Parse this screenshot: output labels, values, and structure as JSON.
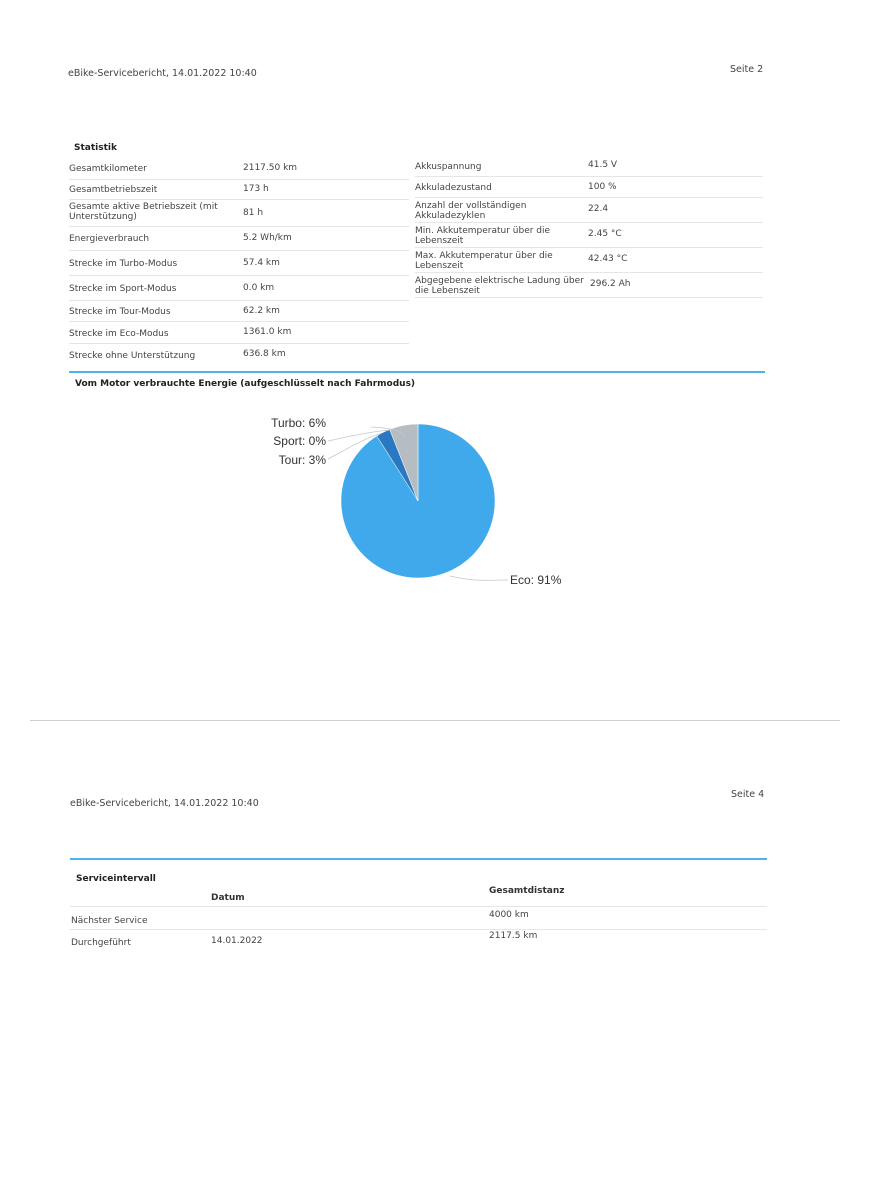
{
  "page1": {
    "header_left": "eBike-Servicebericht, 14.01.2022 10:40",
    "header_right": "Seite 2",
    "statistik_title": "Statistik",
    "left_rows": [
      {
        "label": "Gesamtkilometer",
        "value": "2117.50 km"
      },
      {
        "label": "Gesamtbetriebszeit",
        "value": "173 h"
      },
      {
        "label": "Gesamte aktive Betriebszeit (mit Unterstützung)",
        "value": "81 h"
      },
      {
        "label": "Energieverbrauch",
        "value": "5.2 Wh/km"
      },
      {
        "label": "Strecke im Turbo-Modus",
        "value": "57.4 km"
      },
      {
        "label": "Strecke im Sport-Modus",
        "value": "0.0 km"
      },
      {
        "label": "Strecke im Tour-Modus",
        "value": "62.2 km"
      },
      {
        "label": "Strecke im Eco-Modus",
        "value": "1361.0 km"
      },
      {
        "label": "Strecke ohne Unterstützung",
        "value": "636.8 km"
      }
    ],
    "right_rows": [
      {
        "label": "Akkuspannung",
        "value": "41.5 V"
      },
      {
        "label": "Akkuladezustand",
        "value": "100 %"
      },
      {
        "label": "Anzahl der vollständigen Akkuladezyklen",
        "value": "22.4"
      },
      {
        "label": "Min. Akkutemperatur über die Lebenszeit",
        "value": "2.45 °C"
      },
      {
        "label": "Max. Akkutemperatur über die Lebenszeit",
        "value": "42.43 °C"
      },
      {
        "label": "Abgegebene elektrische Ladung über die Lebenszeit",
        "value": "296.2 Ah"
      }
    ],
    "chart_title": "Vom Motor verbrauchte Energie (aufgeschlüsselt nach Fahrmodus)"
  },
  "chart_data": {
    "type": "pie",
    "title": "Vom Motor verbrauchte Energie (aufgeschlüsselt nach Fahrmodus)",
    "slices": [
      {
        "name": "Eco",
        "value": 91,
        "label": "Eco: 91%",
        "color": "#3fa9ec"
      },
      {
        "name": "Tour",
        "value": 3,
        "label": "Tour: 3%",
        "color": "#2a78c2"
      },
      {
        "name": "Sport",
        "value": 0,
        "label": "Sport: 0%",
        "color": "#1f4f86"
      },
      {
        "name": "Turbo",
        "value": 6,
        "label": "Turbo: 6%",
        "color": "#b5bcc2"
      }
    ]
  },
  "page2": {
    "header_left": "eBike-Servicebericht, 14.01.2022 10:40",
    "header_right": "Seite 4",
    "section_title": "Serviceintervall",
    "col_datum": "Datum",
    "col_distanz": "Gesamtdistanz",
    "rows": [
      {
        "label": "Nächster Service",
        "datum": "",
        "distanz": "4000 km"
      },
      {
        "label": "Durchgeführt",
        "datum": "14.01.2022",
        "distanz": "2117.5 km"
      }
    ]
  },
  "colors": {
    "accent": "#4db3ea"
  }
}
